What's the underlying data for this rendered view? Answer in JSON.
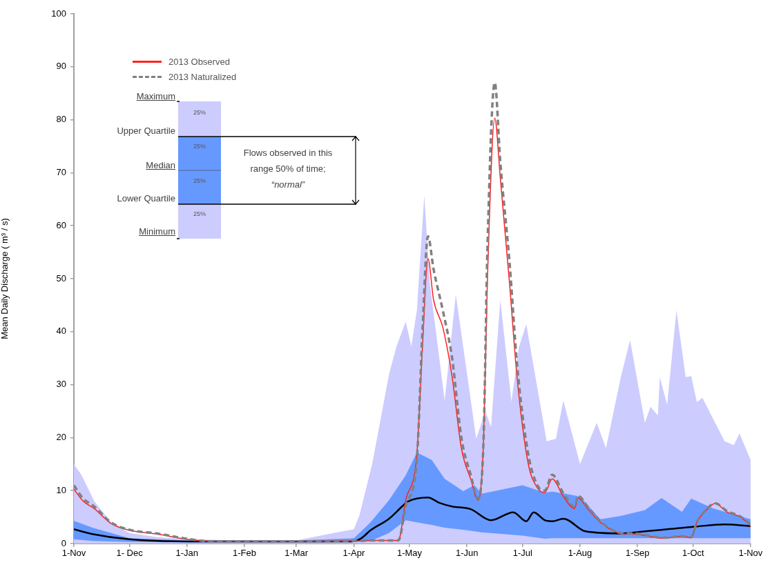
{
  "chart_data": {
    "type": "line",
    "ylabel": "Mean Daily Discharge ( m³ / s)",
    "xlim": [
      "2012-11-01",
      "2013-11-01"
    ],
    "xticks": [
      {
        "value": "2012-11-01",
        "label": "1-Nov"
      },
      {
        "value": "2012-12-01",
        "label": "1- Dec"
      },
      {
        "value": "2013-01-01",
        "label": "1-Jan"
      },
      {
        "value": "2013-02-01",
        "label": "1-Feb"
      },
      {
        "value": "2013-03-01",
        "label": "1-Mar"
      },
      {
        "value": "2013-04-01",
        "label": "1-Apr"
      },
      {
        "value": "2013-05-01",
        "label": "1-May"
      },
      {
        "value": "2013-06-01",
        "label": "1-Jun"
      },
      {
        "value": "2013-07-01",
        "label": "1-Jul"
      },
      {
        "value": "2013-08-01",
        "label": "1-Aug"
      },
      {
        "value": "2013-09-01",
        "label": "1-Sep"
      },
      {
        "value": "2013-10-01",
        "label": "1-Oct"
      },
      {
        "value": "2013-11-01",
        "label": "1-Nov"
      }
    ],
    "ylim": [
      0,
      100
    ],
    "yticks": [
      0,
      10,
      20,
      30,
      40,
      50,
      60,
      70,
      80,
      90,
      100
    ],
    "legend": "top left",
    "marker": "none",
    "annotations": [
      "Maximum",
      "Upper Quartile",
      "Median",
      "Lower Quartile",
      "Minimum",
      "25%",
      "25%",
      "25%",
      "25%",
      "Flows observed in this range 50% of time; “normal”"
    ],
    "series": [
      {
        "type": "area",
        "color": "#ccccff",
        "x": [
          "2012-11-01",
          "2012-11-05",
          "2012-11-12",
          "2012-11-21",
          "2012-12-01",
          "2012-12-16",
          "2013-01-01",
          "2013-01-30",
          "2013-03-01",
          "2013-03-21",
          "2013-04-01",
          "2013-04-04",
          "2013-04-11",
          "2013-04-20",
          "2013-04-24",
          "2013-04-29",
          "2013-05-02",
          "2013-05-05",
          "2013-05-09",
          "2013-05-12",
          "2013-05-20",
          "2013-05-26",
          "2013-06-06",
          "2013-06-11",
          "2013-06-14",
          "2013-06-19",
          "2013-06-25",
          "2013-06-29",
          "2013-07-03",
          "2013-07-14",
          "2013-07-19",
          "2013-07-23",
          "2013-08-01",
          "2013-08-10",
          "2013-08-15",
          "2013-08-23",
          "2013-08-28",
          "2013-09-05",
          "2013-09-08",
          "2013-09-12",
          "2013-09-13",
          "2013-09-17",
          "2013-09-22",
          "2013-09-27",
          "2013-09-30",
          "2013-10-03",
          "2013-10-06",
          "2013-10-18",
          "2013-10-23",
          "2013-10-26",
          "2013-11-01"
        ],
        "values": [
          15,
          13,
          8,
          4,
          2,
          1.2,
          0.8,
          0.6,
          0.6,
          2,
          2.7,
          5.3,
          15.2,
          32,
          37.2,
          41.9,
          37.2,
          44,
          65.8,
          49,
          27,
          47,
          19.8,
          25,
          22,
          46,
          26.8,
          37,
          41.4,
          19.3,
          19.8,
          27,
          15,
          22.8,
          18,
          31.4,
          38.4,
          22.8,
          25.8,
          24.2,
          31.4,
          26.2,
          44,
          31.4,
          31.6,
          26.7,
          27.5,
          19.3,
          18.6,
          20.8,
          15.8
        ]
      },
      {
        "color": "#6699ff",
        "x": [
          "2012-11-01",
          "2012-11-11",
          "2012-12-01",
          "2013-01-01",
          "2013-01-30",
          "2013-03-01",
          "2013-04-01",
          "2013-04-10",
          "2013-04-20",
          "2013-04-29",
          "2013-05-05",
          "2013-05-13",
          "2013-05-20",
          "2013-05-30",
          "2013-06-05",
          "2013-06-09",
          "2013-07-01",
          "2013-07-13",
          "2013-07-17",
          "2013-07-24",
          "2013-08-01",
          "2013-08-12",
          "2013-08-23",
          "2013-09-05",
          "2013-09-14",
          "2013-09-25",
          "2013-09-30",
          "2013-10-12",
          "2013-11-01"
        ],
        "values": [
          null,
          null,
          null,
          null,
          null,
          null,
          null,
          null,
          null,
          null,
          null,
          null,
          null,
          null,
          null,
          null,
          null,
          null,
          null,
          null,
          null,
          null,
          null,
          null,
          null,
          null,
          null,
          null,
          null
        ],
        "upper": [
          4.3,
          3,
          1,
          0.6,
          0.6,
          0.6,
          1,
          4,
          8.2,
          12.9,
          17.2,
          15.8,
          12.2,
          9.9,
          11,
          9.4,
          11,
          9.6,
          9.8,
          9.4,
          8.9,
          4.6,
          5.2,
          6.3,
          8.6,
          6,
          8.5,
          6.6,
          4.6
        ],
        "lower": [
          0.8,
          0.5,
          0.3,
          0.2,
          0.2,
          0.2,
          0.3,
          0.5,
          2,
          4.4,
          4,
          3.5,
          3,
          2.6,
          2.3,
          2.1,
          1.5,
          0.9,
          1,
          1,
          1,
          1,
          1,
          1,
          1,
          1,
          1,
          1,
          1
        ]
      },
      {
        "color": "#000000",
        "x": [
          "2012-11-01",
          "2012-11-11",
          "2012-12-01",
          "2013-01-01",
          "2013-02-09",
          "2013-03-31",
          "2013-04-05",
          "2013-04-10",
          "2013-04-20",
          "2013-04-27",
          "2013-04-30",
          "2013-05-11",
          "2013-05-17",
          "2013-05-24",
          "2013-06-03",
          "2013-06-14",
          "2013-06-26",
          "2013-07-03",
          "2013-07-07",
          "2013-07-13",
          "2013-07-17",
          "2013-07-23",
          "2013-08-04",
          "2013-08-23",
          "2013-09-05",
          "2013-09-17",
          "2013-10-02",
          "2013-10-18",
          "2013-11-01"
        ],
        "values": [
          2.7,
          1.8,
          0.8,
          0.4,
          0.4,
          0.4,
          1,
          2.5,
          4.7,
          7,
          7.9,
          8.7,
          7.7,
          7,
          6.5,
          4.4,
          5.9,
          4.2,
          5.9,
          4.4,
          4.2,
          4.7,
          2.3,
          1.9,
          2.3,
          2.7,
          3.2,
          3.6,
          3.3
        ]
      },
      {
        "name": "2013 Observed",
        "color": "#ff2020",
        "line_style": "solid",
        "x": [
          "2012-11-01",
          "2012-11-06",
          "2012-11-12",
          "2012-11-21",
          "2012-12-01",
          "2012-12-16",
          "2013-01-01",
          "2013-01-15",
          "2013-02-09",
          "2013-04-05",
          "2013-04-10",
          "2013-04-20",
          "2013-04-25",
          "2013-04-29",
          "2013-05-05",
          "2013-05-08",
          "2013-05-11",
          "2013-05-14",
          "2013-05-19",
          "2013-05-24",
          "2013-05-29",
          "2013-06-03",
          "2013-06-07",
          "2013-06-10",
          "2013-06-12",
          "2013-06-16",
          "2013-06-19",
          "2013-06-24",
          "2013-06-28",
          "2013-07-04",
          "2013-07-09",
          "2013-07-13",
          "2013-07-17",
          "2013-07-23",
          "2013-07-29",
          "2013-07-31",
          "2013-08-05",
          "2013-08-12",
          "2013-08-23",
          "2013-08-30",
          "2013-09-15",
          "2013-09-25",
          "2013-09-30",
          "2013-10-03",
          "2013-10-07",
          "2013-10-13",
          "2013-10-19",
          "2013-10-27",
          "2013-11-01"
        ],
        "values": [
          10.3,
          8,
          6.6,
          3.8,
          2.5,
          1.8,
          0.8,
          0.4,
          0.4,
          0.5,
          0.6,
          0.6,
          0.6,
          8.2,
          17,
          37,
          53.8,
          46,
          40.8,
          31.5,
          18,
          12.2,
          8.2,
          19.8,
          49,
          80.3,
          69,
          49,
          31.5,
          15.2,
          10.5,
          9.6,
          12.2,
          8.9,
          6.6,
          8.6,
          6.6,
          4,
          1.9,
          1.8,
          1,
          1.4,
          1.1,
          4,
          5.9,
          7.6,
          6,
          4.9,
          3.3
        ]
      },
      {
        "name": "2013 Naturalized",
        "color": "#808080",
        "line_style": "dashed",
        "x": [
          "2012-11-01",
          "2012-11-06",
          "2012-11-12",
          "2012-11-21",
          "2012-12-01",
          "2012-12-16",
          "2013-01-01",
          "2013-01-15",
          "2013-02-09",
          "2013-04-05",
          "2013-04-10",
          "2013-04-20",
          "2013-04-25",
          "2013-04-29",
          "2013-05-05",
          "2013-05-08",
          "2013-05-11",
          "2013-05-14",
          "2013-05-19",
          "2013-05-24",
          "2013-05-29",
          "2013-06-03",
          "2013-06-07",
          "2013-06-10",
          "2013-06-12",
          "2013-06-16",
          "2013-06-19",
          "2013-06-24",
          "2013-06-28",
          "2013-07-04",
          "2013-07-09",
          "2013-07-13",
          "2013-07-17",
          "2013-07-23",
          "2013-07-29",
          "2013-07-31",
          "2013-08-05",
          "2013-08-12",
          "2013-08-23",
          "2013-08-30",
          "2013-09-15",
          "2013-09-25",
          "2013-09-30",
          "2013-10-03",
          "2013-10-07",
          "2013-10-13",
          "2013-10-19",
          "2013-10-27",
          "2013-11-01"
        ],
        "values": [
          11,
          8.5,
          7,
          4,
          2.6,
          1.9,
          0.9,
          0.4,
          0.4,
          0.5,
          0.6,
          0.6,
          0.6,
          7,
          16,
          40,
          58,
          51.8,
          44,
          35,
          20,
          13,
          8.5,
          20,
          55,
          87,
          72,
          53,
          34,
          17,
          11,
          10,
          13,
          9.5,
          7,
          9,
          7,
          4.2,
          2,
          1.9,
          1.1,
          1.4,
          1.2,
          4,
          6,
          7.6,
          6.2,
          5,
          3.5
        ]
      }
    ]
  }
}
